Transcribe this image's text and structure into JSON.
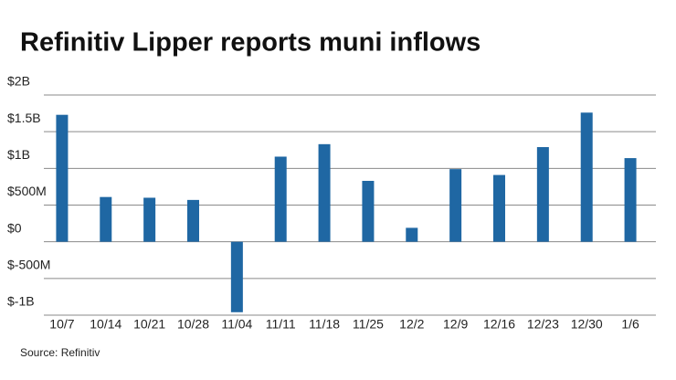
{
  "chart_data": {
    "type": "bar",
    "title": "Refinitiv Lipper reports muni inflows",
    "source": "Source: Refinitiv",
    "categories": [
      "10/7",
      "10/14",
      "10/21",
      "10/28",
      "11/04",
      "11/11",
      "11/18",
      "11/25",
      "12/2",
      "12/9",
      "12/16",
      "12/23",
      "12/30",
      "1/6"
    ],
    "values": [
      1730000000,
      610000000,
      600000000,
      570000000,
      -960000000,
      1160000000,
      1330000000,
      830000000,
      190000000,
      990000000,
      910000000,
      1290000000,
      1760000000,
      1140000000
    ],
    "color": "#1f67a3",
    "ylim": [
      -1000000000,
      2000000000
    ],
    "yticks": [
      {
        "value": -1000000000,
        "label": "$-1B"
      },
      {
        "value": -500000000,
        "label": "$-500M"
      },
      {
        "value": 0,
        "label": "$0"
      },
      {
        "value": 500000000,
        "label": "$500M"
      },
      {
        "value": 1000000000,
        "label": "$1B"
      },
      {
        "value": 1500000000,
        "label": "$1.5B"
      },
      {
        "value": 2000000000,
        "label": "$2B"
      }
    ],
    "grid": true
  }
}
